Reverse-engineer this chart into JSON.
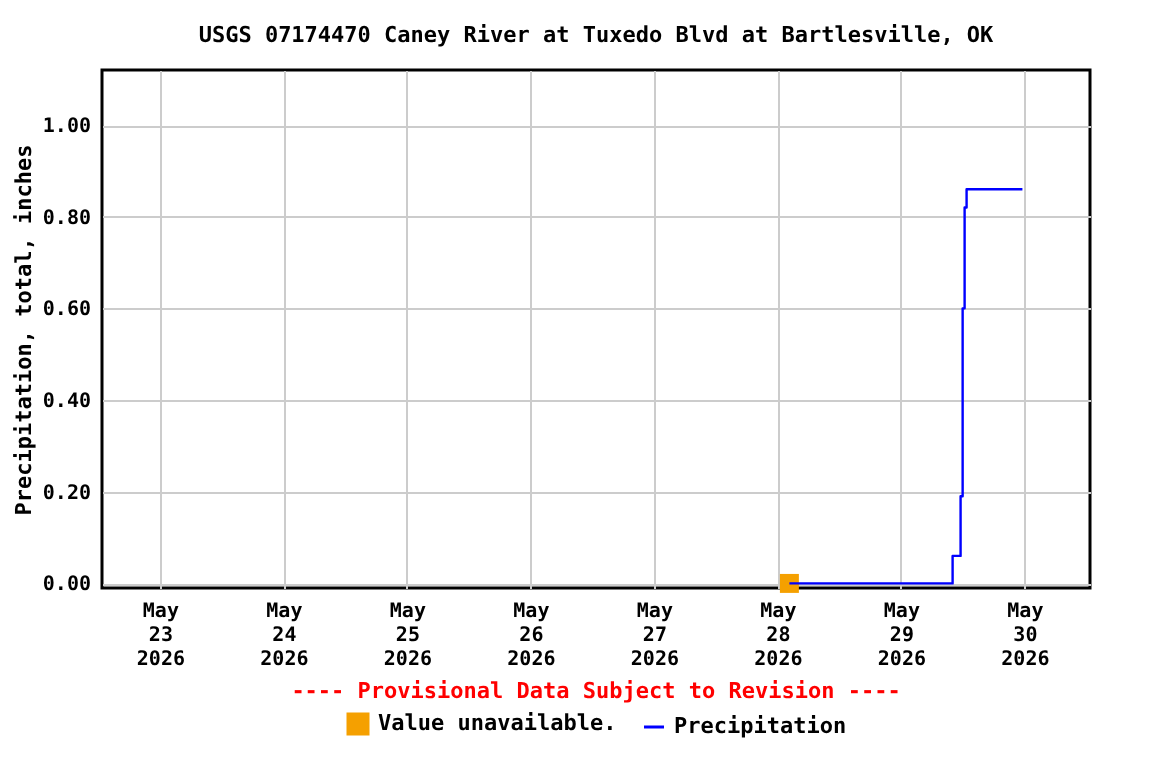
{
  "chart_data": {
    "type": "line",
    "title": "USGS 07174470 Caney River at Tuxedo Blvd at Bartlesville, OK",
    "ylabel": "Precipitation, total, inches",
    "annotations": [
      "---- Provisional Data Subject to Revision ----"
    ],
    "series": [
      {
        "name": "Value unavailable.",
        "type": "scatter",
        "marker": "square",
        "color": "#f5a000",
        "x": [
          "2026-05-28T02:20"
        ],
        "values": [
          0.0
        ]
      },
      {
        "name": "Precipitation",
        "type": "step",
        "color": "#0000ff",
        "x": [
          "2026-05-28T02:20",
          "2026-05-29T10:03",
          "2026-05-29T11:36",
          "2026-05-29T12:00",
          "2026-05-29T12:23",
          "2026-05-29T12:46",
          "2026-05-29T23:37"
        ],
        "values": [
          0.0,
          0.06,
          0.19,
          0.6,
          0.82,
          0.86,
          0.86
        ]
      }
    ],
    "xlim": [
      "2026-05-22T12:45",
      "2026-05-30T12:45"
    ],
    "xticks": [
      {
        "value": "2026-05-23",
        "label": "May\n23\n2026"
      },
      {
        "value": "2026-05-24",
        "label": "May\n24\n2026"
      },
      {
        "value": "2026-05-25",
        "label": "May\n25\n2026"
      },
      {
        "value": "2026-05-26",
        "label": "May\n26\n2026"
      },
      {
        "value": "2026-05-27",
        "label": "May\n27\n2026"
      },
      {
        "value": "2026-05-28",
        "label": "May\n28\n2026"
      },
      {
        "value": "2026-05-29",
        "label": "May\n29\n2026"
      },
      {
        "value": "2026-05-30",
        "label": "May\n30\n2026"
      }
    ],
    "ylim": [
      -0.01,
      1.12
    ],
    "yticks": [
      {
        "value": 0,
        "label": "0.00"
      },
      {
        "value": 0.2,
        "label": "0.20"
      },
      {
        "value": 0.4,
        "label": "0.40"
      },
      {
        "value": 0.6,
        "label": "0.60"
      },
      {
        "value": 0.8,
        "label": "0.80"
      },
      {
        "value": 1.0,
        "label": "1.00"
      }
    ],
    "grid": true,
    "legend": "bottom"
  }
}
